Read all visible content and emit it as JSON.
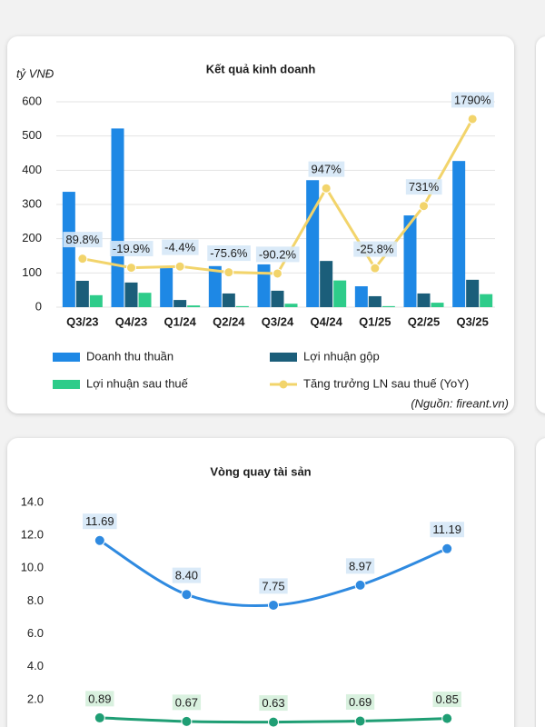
{
  "chart_data": [
    {
      "type": "bar",
      "title": "Kết quả kinh doanh",
      "y_label": "tỷ VNĐ",
      "source": "(Nguồn: fireant.vn)",
      "categories": [
        "Q3/23",
        "Q4/23",
        "Q1/24",
        "Q2/24",
        "Q3/24",
        "Q4/24",
        "Q1/25",
        "Q2/25",
        "Q3/25"
      ],
      "ylim": [
        0,
        600
      ],
      "yticks": [
        0,
        100,
        200,
        300,
        400,
        500,
        600
      ],
      "y2lim": [
        -500,
        2000
      ],
      "grid": true,
      "series": [
        {
          "name": "Doanh thu thuần",
          "color": "#1e88e5",
          "values": [
            337,
            522,
            114,
            120,
            125,
            371,
            61,
            268,
            427
          ]
        },
        {
          "name": "Lợi nhuận gộp",
          "color": "#1b5e7a",
          "values": [
            77,
            72,
            21,
            40,
            48,
            135,
            32,
            40,
            80
          ]
        },
        {
          "name": "Lợi nhuận sau thuế",
          "color": "#2ecc8a",
          "values": [
            35,
            42,
            5,
            3,
            10,
            78,
            3,
            13,
            38
          ]
        },
        {
          "name": "Tăng trưởng LN sau thuế (YoY)",
          "type": "line",
          "axis": "y2",
          "color": "#f2d46b",
          "values": [
            89.8,
            -19.9,
            -4.4,
            -75.6,
            -90.2,
            947,
            -25.8,
            731,
            1790
          ],
          "value_labels": [
            "89.8%",
            "-19.9%",
            "-4.4%",
            "-75.6%",
            "-90.2%",
            "947%",
            "-25.8%",
            "731%",
            "1790%"
          ]
        }
      ]
    },
    {
      "type": "line",
      "title": "Vòng quay tài sản",
      "categories": [
        null,
        null,
        null,
        null,
        null
      ],
      "ylim": [
        0,
        14
      ],
      "grid": false,
      "yticks": [
        {
          "value": 2,
          "label": "2.0"
        },
        {
          "value": 4,
          "label": "4.0"
        },
        {
          "value": 6,
          "label": "6.0"
        },
        {
          "value": 8,
          "label": "8.0"
        },
        {
          "value": 10,
          "label": "10.0"
        },
        {
          "value": 12,
          "label": "12.0"
        },
        {
          "value": 14,
          "label": "14.0"
        }
      ],
      "series": [
        {
          "color": "#2f8ae0",
          "label_bg": "#d6e8f7",
          "values": [
            11.69,
            8.4,
            7.75,
            8.97,
            11.19
          ],
          "value_labels": [
            "11.69",
            "8.40",
            "7.75",
            "8.97",
            "11.19"
          ]
        },
        {
          "color": "#1f9e74",
          "label_bg": "#d5f0dc",
          "values": [
            0.89,
            0.67,
            0.63,
            0.69,
            0.85
          ],
          "value_labels": [
            "0.89",
            "0.67",
            "0.63",
            "0.69",
            "0.85"
          ]
        }
      ]
    }
  ]
}
